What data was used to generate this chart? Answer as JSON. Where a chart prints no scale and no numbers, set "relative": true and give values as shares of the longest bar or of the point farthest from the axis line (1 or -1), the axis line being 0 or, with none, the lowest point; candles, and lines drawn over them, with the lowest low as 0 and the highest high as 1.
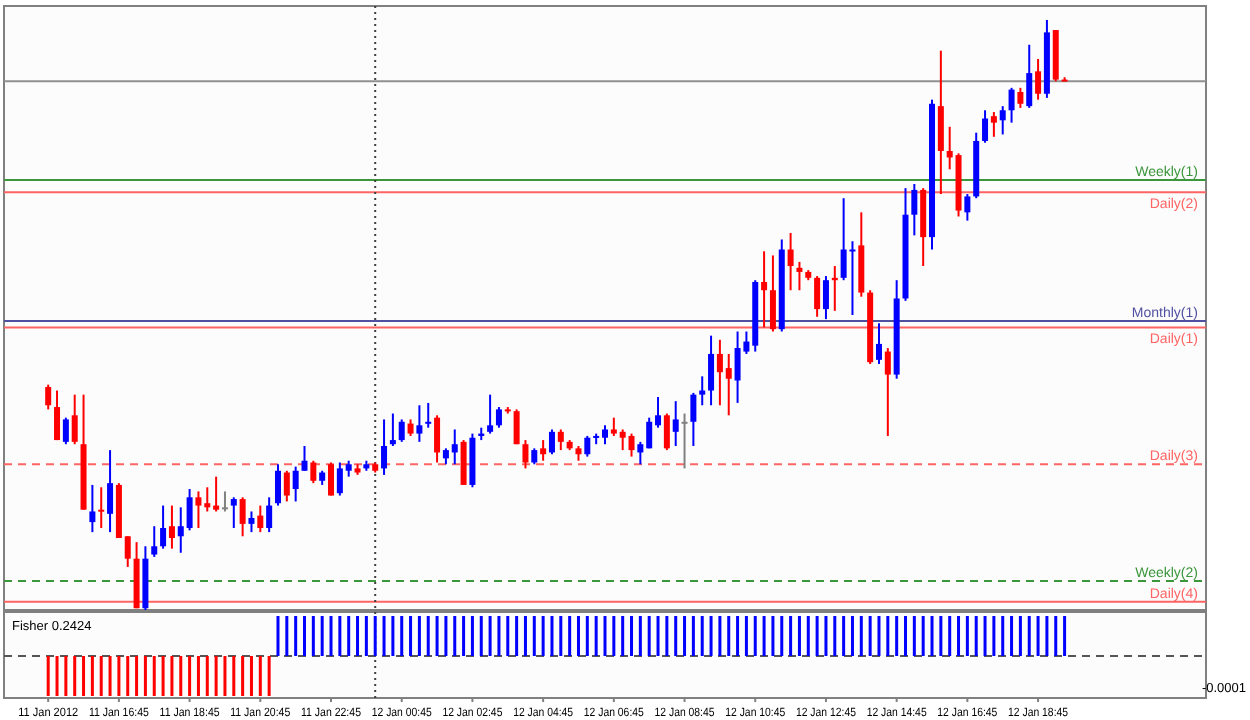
{
  "chart_data": [
    {
      "type": "candlestick",
      "relative": true,
      "tick_labels": false,
      "xlim": [
        "2012-01-11T13:30",
        "2012-01-12T23:30"
      ],
      "x": [
        "2012-01-11T14:45",
        "2012-01-11T15:00",
        "2012-01-11T15:15",
        "2012-01-11T15:30",
        "2012-01-11T15:45",
        "2012-01-11T16:00",
        "2012-01-11T16:15",
        "2012-01-11T16:30",
        "2012-01-11T16:45",
        "2012-01-11T17:00",
        "2012-01-11T17:15",
        "2012-01-11T17:30",
        "2012-01-11T17:45",
        "2012-01-11T18:00",
        "2012-01-11T18:15",
        "2012-01-11T18:30",
        "2012-01-11T18:45",
        "2012-01-11T19:00",
        "2012-01-11T19:15",
        "2012-01-11T19:30",
        "2012-01-11T19:45",
        "2012-01-11T20:00",
        "2012-01-11T20:15",
        "2012-01-11T20:30",
        "2012-01-11T20:45",
        "2012-01-11T21:00",
        "2012-01-11T21:15",
        "2012-01-11T21:30",
        "2012-01-11T21:45",
        "2012-01-11T22:00",
        "2012-01-11T22:15",
        "2012-01-11T22:30",
        "2012-01-11T22:45",
        "2012-01-11T23:00",
        "2012-01-11T23:15",
        "2012-01-11T23:30",
        "2012-01-11T23:45",
        "2012-01-12T00:00",
        "2012-01-12T00:15",
        "2012-01-12T00:30",
        "2012-01-12T00:45",
        "2012-01-12T01:00",
        "2012-01-12T01:15",
        "2012-01-12T01:30",
        "2012-01-12T01:45",
        "2012-01-12T02:00",
        "2012-01-12T02:15",
        "2012-01-12T02:30",
        "2012-01-12T02:45",
        "2012-01-12T03:00",
        "2012-01-12T03:15",
        "2012-01-12T03:30",
        "2012-01-12T03:45",
        "2012-01-12T04:00",
        "2012-01-12T04:15",
        "2012-01-12T04:30",
        "2012-01-12T04:45",
        "2012-01-12T05:00",
        "2012-01-12T05:15",
        "2012-01-12T05:30",
        "2012-01-12T05:45",
        "2012-01-12T06:00",
        "2012-01-12T06:15",
        "2012-01-12T06:30",
        "2012-01-12T06:45",
        "2012-01-12T07:00",
        "2012-01-12T07:15",
        "2012-01-12T07:30",
        "2012-01-12T07:45",
        "2012-01-12T08:00",
        "2012-01-12T08:15",
        "2012-01-12T08:30",
        "2012-01-12T08:45",
        "2012-01-12T09:00",
        "2012-01-12T09:15",
        "2012-01-12T09:30",
        "2012-01-12T09:45",
        "2012-01-12T10:00",
        "2012-01-12T10:15",
        "2012-01-12T10:30",
        "2012-01-12T10:45",
        "2012-01-12T11:00",
        "2012-01-12T11:15",
        "2012-01-12T11:30",
        "2012-01-12T11:45",
        "2012-01-12T12:00",
        "2012-01-12T12:15",
        "2012-01-12T12:30",
        "2012-01-12T12:45",
        "2012-01-12T13:00",
        "2012-01-12T13:15",
        "2012-01-12T13:30",
        "2012-01-12T13:45",
        "2012-01-12T14:00",
        "2012-01-12T14:15",
        "2012-01-12T14:30",
        "2012-01-12T14:45",
        "2012-01-12T15:00",
        "2012-01-12T15:15",
        "2012-01-12T15:30",
        "2012-01-12T15:45",
        "2012-01-12T16:00",
        "2012-01-12T16:15",
        "2012-01-12T16:30",
        "2012-01-12T16:45",
        "2012-01-12T17:00",
        "2012-01-12T17:15",
        "2012-01-12T17:30",
        "2012-01-12T17:45",
        "2012-01-12T18:00",
        "2012-01-12T18:15",
        "2012-01-12T18:30",
        "2012-01-12T18:45",
        "2012-01-12T19:00",
        "2012-01-12T19:15",
        "2012-01-12T19:30"
      ],
      "ohlc": [
        [
          0.378,
          0.382,
          0.34,
          0.347
        ],
        [
          0.344,
          0.372,
          0.288,
          0.288
        ],
        [
          0.285,
          0.326,
          0.281,
          0.323
        ],
        [
          0.33,
          0.365,
          0.281,
          0.285
        ],
        [
          0.281,
          0.365,
          0.17,
          0.17
        ],
        [
          0.149,
          0.212,
          0.132,
          0.167
        ],
        [
          0.17,
          0.208,
          0.139,
          0.167
        ],
        [
          0.163,
          0.271,
          0.132,
          0.215
        ],
        [
          0.212,
          0.215,
          0.122,
          0.122
        ],
        [
          0.125,
          0.125,
          0.073,
          0.087
        ],
        [
          0.087,
          0.115,
          0.003,
          0.003
        ],
        [
          0.003,
          0.108,
          0,
          0.087
        ],
        [
          0.094,
          0.142,
          0.09,
          0.108
        ],
        [
          0.108,
          0.177,
          0.104,
          0.139
        ],
        [
          0.142,
          0.177,
          0.104,
          0.122
        ],
        [
          0.125,
          0.174,
          0.097,
          0.142
        ],
        [
          0.139,
          0.205,
          0.135,
          0.191
        ],
        [
          0.191,
          0.201,
          0.139,
          0.177
        ],
        [
          0.181,
          0.208,
          0.167,
          0.174
        ],
        [
          0.177,
          0.226,
          0.167,
          0.17
        ],
        [
          0.174,
          0.201,
          0.167,
          0.174
        ],
        [
          0.177,
          0.191,
          0.139,
          0.188
        ],
        [
          0.188,
          0.191,
          0.125,
          0.146
        ],
        [
          0.146,
          0.167,
          0.132,
          0.156
        ],
        [
          0.16,
          0.177,
          0.132,
          0.139
        ],
        [
          0.139,
          0.191,
          0.132,
          0.177
        ],
        [
          0.181,
          0.247,
          0.177,
          0.236
        ],
        [
          0.233,
          0.236,
          0.184,
          0.194
        ],
        [
          0.205,
          0.243,
          0.184,
          0.236
        ],
        [
          0.236,
          0.278,
          0.236,
          0.253
        ],
        [
          0.25,
          0.253,
          0.215,
          0.219
        ],
        [
          0.219,
          0.236,
          0.212,
          0.233
        ],
        [
          0.247,
          0.25,
          0.194,
          0.194
        ],
        [
          0.198,
          0.25,
          0.194,
          0.24
        ],
        [
          0.236,
          0.253,
          0.226,
          0.247
        ],
        [
          0.24,
          0.247,
          0.229,
          0.233
        ],
        [
          0.24,
          0.253,
          0.236,
          0.247
        ],
        [
          0.247,
          0.25,
          0.233,
          0.236
        ],
        [
          0.24,
          0.323,
          0.229,
          0.278
        ],
        [
          0.281,
          0.333,
          0.278,
          0.288
        ],
        [
          0.288,
          0.323,
          0.285,
          0.319
        ],
        [
          0.316,
          0.323,
          0.295,
          0.299
        ],
        [
          0.299,
          0.347,
          0.285,
          0.313
        ],
        [
          0.316,
          0.351,
          0.309,
          0.319
        ],
        [
          0.326,
          0.33,
          0.25,
          0.267
        ],
        [
          0.257,
          0.274,
          0.247,
          0.271
        ],
        [
          0.267,
          0.306,
          0.247,
          0.281
        ],
        [
          0.285,
          0.288,
          0.212,
          0.212
        ],
        [
          0.212,
          0.299,
          0.208,
          0.292
        ],
        [
          0.295,
          0.309,
          0.288,
          0.299
        ],
        [
          0.302,
          0.365,
          0.299,
          0.313
        ],
        [
          0.313,
          0.344,
          0.309,
          0.34
        ],
        [
          0.34,
          0.344,
          0.333,
          0.337
        ],
        [
          0.337,
          0.34,
          0.281,
          0.281
        ],
        [
          0.281,
          0.288,
          0.24,
          0.25
        ],
        [
          0.25,
          0.274,
          0.247,
          0.271
        ],
        [
          0.274,
          0.288,
          0.253,
          0.264
        ],
        [
          0.267,
          0.306,
          0.264,
          0.302
        ],
        [
          0.302,
          0.306,
          0.271,
          0.285
        ],
        [
          0.285,
          0.288,
          0.271,
          0.274
        ],
        [
          0.274,
          0.278,
          0.253,
          0.264
        ],
        [
          0.264,
          0.295,
          0.26,
          0.292
        ],
        [
          0.292,
          0.299,
          0.281,
          0.295
        ],
        [
          0.292,
          0.313,
          0.281,
          0.306
        ],
        [
          0.306,
          0.326,
          0.295,
          0.299
        ],
        [
          0.302,
          0.306,
          0.271,
          0.292
        ],
        [
          0.295,
          0.299,
          0.26,
          0.271
        ],
        [
          0.267,
          0.285,
          0.247,
          0.281
        ],
        [
          0.274,
          0.326,
          0.274,
          0.319
        ],
        [
          0.313,
          0.361,
          0.309,
          0.33
        ],
        [
          0.33,
          0.333,
          0.271,
          0.274
        ],
        [
          0.302,
          0.354,
          0.278,
          0.323
        ],
        [
          0.319,
          0.333,
          0.24,
          0.319
        ],
        [
          0.319,
          0.368,
          0.278,
          0.365
        ],
        [
          0.365,
          0.396,
          0.347,
          0.372
        ],
        [
          0.372,
          0.465,
          0.347,
          0.434
        ],
        [
          0.434,
          0.458,
          0.347,
          0.403
        ],
        [
          0.41,
          0.434,
          0.33,
          0.392
        ],
        [
          0.389,
          0.472,
          0.351,
          0.444
        ],
        [
          0.438,
          0.472,
          0.434,
          0.455
        ],
        [
          0.448,
          0.559,
          0.438,
          0.556
        ],
        [
          0.556,
          0.608,
          0.479,
          0.542
        ],
        [
          0.542,
          0.601,
          0.472,
          0.476
        ],
        [
          0.476,
          0.628,
          0.472,
          0.611
        ],
        [
          0.611,
          0.639,
          0.542,
          0.583
        ],
        [
          0.58,
          0.59,
          0.542,
          0.573
        ],
        [
          0.573,
          0.576,
          0.559,
          0.563
        ],
        [
          0.563,
          0.566,
          0.497,
          0.51
        ],
        [
          0.51,
          0.566,
          0.493,
          0.559
        ],
        [
          0.563,
          0.583,
          0.507,
          0.559
        ],
        [
          0.563,
          0.698,
          0.559,
          0.611
        ],
        [
          0.608,
          0.625,
          0.5,
          0.611
        ],
        [
          0.618,
          0.674,
          0.531,
          0.538
        ],
        [
          0.538,
          0.542,
          0.417,
          0.42
        ],
        [
          0.424,
          0.486,
          0.417,
          0.451
        ],
        [
          0.438,
          0.444,
          0.295,
          0.399
        ],
        [
          0.399,
          0.559,
          0.392,
          0.528
        ],
        [
          0.528,
          0.715,
          0.524,
          0.67
        ],
        [
          0.67,
          0.722,
          0.635,
          0.712
        ],
        [
          0.712,
          0.715,
          0.583,
          0.632
        ],
        [
          0.632,
          0.865,
          0.611,
          0.858
        ],
        [
          0.854,
          0.948,
          0.705,
          0.778
        ],
        [
          0.778,
          0.819,
          0.747,
          0.767
        ],
        [
          0.771,
          0.774,
          0.667,
          0.677
        ],
        [
          0.674,
          0.705,
          0.66,
          0.701
        ],
        [
          0.701,
          0.809,
          0.698,
          0.795
        ],
        [
          0.795,
          0.847,
          0.792,
          0.833
        ],
        [
          0.837,
          0.844,
          0.802,
          0.826
        ],
        [
          0.83,
          0.854,
          0.806,
          0.847
        ],
        [
          0.847,
          0.885,
          0.826,
          0.882
        ],
        [
          0.878,
          0.885,
          0.851,
          0.858
        ],
        [
          0.854,
          0.958,
          0.851,
          0.91
        ],
        [
          0.913,
          0.934,
          0.865,
          0.875
        ],
        [
          0.875,
          1,
          0.868,
          0.979
        ],
        [
          0.983,
          0.983,
          0.896,
          0.899
        ],
        [
          0.899,
          0.903,
          0.896,
          0.896
        ]
      ],
      "colors": [
        "#ff0000",
        "#ff0000",
        "#0000ff",
        "#ff0000",
        "#ff0000",
        "#0000ff",
        "#ff0000",
        "#0000ff",
        "#ff0000",
        "#ff0000",
        "#ff0000",
        "#0000ff",
        "#0000ff",
        "#0000ff",
        "#ff0000",
        "#0000ff",
        "#0000ff",
        "#ff0000",
        "#ff0000",
        "#ff0000",
        "#808080",
        "#0000ff",
        "#ff0000",
        "#0000ff",
        "#ff0000",
        "#0000ff",
        "#0000ff",
        "#ff0000",
        "#0000ff",
        "#0000ff",
        "#ff0000",
        "#0000ff",
        "#ff0000",
        "#0000ff",
        "#0000ff",
        "#ff0000",
        "#0000ff",
        "#ff0000",
        "#0000ff",
        "#0000ff",
        "#0000ff",
        "#ff0000",
        "#0000ff",
        "#0000ff",
        "#ff0000",
        "#0000ff",
        "#0000ff",
        "#ff0000",
        "#0000ff",
        "#0000ff",
        "#0000ff",
        "#0000ff",
        "#ff0000",
        "#ff0000",
        "#ff0000",
        "#0000ff",
        "#ff0000",
        "#0000ff",
        "#ff0000",
        "#ff0000",
        "#ff0000",
        "#0000ff",
        "#0000ff",
        "#0000ff",
        "#ff0000",
        "#ff0000",
        "#ff0000",
        "#0000ff",
        "#0000ff",
        "#0000ff",
        "#ff0000",
        "#0000ff",
        "#808080",
        "#0000ff",
        "#0000ff",
        "#0000ff",
        "#ff0000",
        "#ff0000",
        "#0000ff",
        "#0000ff",
        "#0000ff",
        "#ff0000",
        "#ff0000",
        "#0000ff",
        "#ff0000",
        "#ff0000",
        "#ff0000",
        "#ff0000",
        "#0000ff",
        "#ff0000",
        "#0000ff",
        "#0000ff",
        "#ff0000",
        "#ff0000",
        "#0000ff",
        "#ff0000",
        "#0000ff",
        "#0000ff",
        "#0000ff",
        "#ff0000",
        "#0000ff",
        "#ff0000",
        "#ff0000",
        "#ff0000",
        "#0000ff",
        "#0000ff",
        "#0000ff",
        "#ff0000",
        "#0000ff",
        "#0000ff",
        "#ff0000",
        "#0000ff",
        "#ff0000",
        "#0000ff",
        "#ff0000",
        "#ff0000"
      ],
      "ref_lines": [
        {
          "axis": "y",
          "value": 0.896,
          "label": null,
          "color": "#909090",
          "line_style": "solid"
        },
        {
          "axis": "y",
          "value": 0.729,
          "label": "Weekly(1)",
          "color": "#3c963c",
          "line_style": "solid"
        },
        {
          "axis": "y",
          "value": 0.708,
          "label": "Daily(2)",
          "color": "#ff6464",
          "line_style": "solid"
        },
        {
          "axis": "y",
          "value": 0.49,
          "label": "Monthly(1)",
          "color": "#5050a0",
          "line_style": "solid"
        },
        {
          "axis": "y",
          "value": 0.479,
          "label": "Daily(1)",
          "color": "#ff6464",
          "line_style": "solid"
        },
        {
          "axis": "y",
          "value": 0.247,
          "label": "Daily(3)",
          "color": "#ff6464",
          "line_style": "dashed"
        },
        {
          "axis": "y",
          "value": 0.049,
          "label": "Weekly(2)",
          "color": "#3c963c",
          "line_style": "dashed"
        },
        {
          "axis": "y",
          "value": 0.014,
          "label": "Daily(4)",
          "color": "#ff6464",
          "line_style": "solid"
        },
        {
          "axis": "x",
          "value": "2012-01-12T00:00",
          "label": null,
          "color": "#404040",
          "line_style": "dotted"
        }
      ]
    },
    {
      "type": "bar",
      "relative": true,
      "title": "Fisher 0.2424",
      "tick_labels": "x",
      "annotations": [
        "-0.0001"
      ],
      "xlim": [
        "2012-01-11T13:30",
        "2012-01-12T23:30"
      ],
      "xticks": [
        {
          "value": "2012-01-11T14:45",
          "label": "11 Jan 2012"
        },
        {
          "value": "2012-01-11T16:45",
          "label": "11 Jan 16:45"
        },
        {
          "value": "2012-01-11T18:45",
          "label": "11 Jan 18:45"
        },
        {
          "value": "2012-01-11T20:45",
          "label": "11 Jan 20:45"
        },
        {
          "value": "2012-01-11T22:45",
          "label": "11 Jan 22:45"
        },
        {
          "value": "2012-01-12T00:45",
          "label": "12 Jan 00:45"
        },
        {
          "value": "2012-01-12T02:45",
          "label": "12 Jan 02:45"
        },
        {
          "value": "2012-01-12T04:45",
          "label": "12 Jan 04:45"
        },
        {
          "value": "2012-01-12T06:45",
          "label": "12 Jan 06:45"
        },
        {
          "value": "2012-01-12T08:45",
          "label": "12 Jan 08:45"
        },
        {
          "value": "2012-01-12T10:45",
          "label": "12 Jan 10:45"
        },
        {
          "value": "2012-01-12T12:45",
          "label": "12 Jan 12:45"
        },
        {
          "value": "2012-01-12T14:45",
          "label": "12 Jan 14:45"
        },
        {
          "value": "2012-01-12T16:45",
          "label": "12 Jan 16:45"
        },
        {
          "value": "2012-01-12T18:45",
          "label": "12 Jan 18:45"
        }
      ],
      "x": [
        "2012-01-11T14:45",
        "2012-01-11T15:00",
        "2012-01-11T15:15",
        "2012-01-11T15:30",
        "2012-01-11T15:45",
        "2012-01-11T16:00",
        "2012-01-11T16:15",
        "2012-01-11T16:30",
        "2012-01-11T16:45",
        "2012-01-11T17:00",
        "2012-01-11T17:15",
        "2012-01-11T17:30",
        "2012-01-11T17:45",
        "2012-01-11T18:00",
        "2012-01-11T18:15",
        "2012-01-11T18:30",
        "2012-01-11T18:45",
        "2012-01-11T19:00",
        "2012-01-11T19:15",
        "2012-01-11T19:30",
        "2012-01-11T19:45",
        "2012-01-11T20:00",
        "2012-01-11T20:15",
        "2012-01-11T20:30",
        "2012-01-11T20:45",
        "2012-01-11T21:00",
        "2012-01-11T21:15",
        "2012-01-11T21:30",
        "2012-01-11T21:45",
        "2012-01-11T22:00",
        "2012-01-11T22:15",
        "2012-01-11T22:30",
        "2012-01-11T22:45",
        "2012-01-11T23:00",
        "2012-01-11T23:15",
        "2012-01-11T23:30",
        "2012-01-11T23:45",
        "2012-01-12T00:00",
        "2012-01-12T00:15",
        "2012-01-12T00:30",
        "2012-01-12T00:45",
        "2012-01-12T01:00",
        "2012-01-12T01:15",
        "2012-01-12T01:30",
        "2012-01-12T01:45",
        "2012-01-12T02:00",
        "2012-01-12T02:15",
        "2012-01-12T02:30",
        "2012-01-12T02:45",
        "2012-01-12T03:00",
        "2012-01-12T03:15",
        "2012-01-12T03:30",
        "2012-01-12T03:45",
        "2012-01-12T04:00",
        "2012-01-12T04:15",
        "2012-01-12T04:30",
        "2012-01-12T04:45",
        "2012-01-12T05:00",
        "2012-01-12T05:15",
        "2012-01-12T05:30",
        "2012-01-12T05:45",
        "2012-01-12T06:00",
        "2012-01-12T06:15",
        "2012-01-12T06:30",
        "2012-01-12T06:45",
        "2012-01-12T07:00",
        "2012-01-12T07:15",
        "2012-01-12T07:30",
        "2012-01-12T07:45",
        "2012-01-12T08:00",
        "2012-01-12T08:15",
        "2012-01-12T08:30",
        "2012-01-12T08:45",
        "2012-01-12T09:00",
        "2012-01-12T09:15",
        "2012-01-12T09:30",
        "2012-01-12T09:45",
        "2012-01-12T10:00",
        "2012-01-12T10:15",
        "2012-01-12T10:30",
        "2012-01-12T10:45",
        "2012-01-12T11:00",
        "2012-01-12T11:15",
        "2012-01-12T11:30",
        "2012-01-12T11:45",
        "2012-01-12T12:00",
        "2012-01-12T12:15",
        "2012-01-12T12:30",
        "2012-01-12T12:45",
        "2012-01-12T13:00",
        "2012-01-12T13:15",
        "2012-01-12T13:30",
        "2012-01-12T13:45",
        "2012-01-12T14:00",
        "2012-01-12T14:15",
        "2012-01-12T14:30",
        "2012-01-12T14:45",
        "2012-01-12T15:00",
        "2012-01-12T15:15",
        "2012-01-12T15:30",
        "2012-01-12T15:45",
        "2012-01-12T16:00",
        "2012-01-12T16:15",
        "2012-01-12T16:30",
        "2012-01-12T16:45",
        "2012-01-12T17:00",
        "2012-01-12T17:15",
        "2012-01-12T17:30",
        "2012-01-12T17:45",
        "2012-01-12T18:00",
        "2012-01-12T18:15",
        "2012-01-12T18:30",
        "2012-01-12T18:45",
        "2012-01-12T19:00",
        "2012-01-12T19:15",
        "2012-01-12T19:30"
      ],
      "values": [
        -1,
        -1,
        -1,
        -1,
        -1,
        -1,
        -1,
        -1,
        -1,
        -1,
        -1,
        -1,
        -1,
        -1,
        -1,
        -1,
        -1,
        -1,
        -1,
        -1,
        -1,
        -1,
        -1,
        -1,
        -1,
        -1,
        1,
        1,
        1,
        1,
        1,
        1,
        1,
        1,
        1,
        1,
        1,
        1,
        1,
        1,
        1,
        1,
        1,
        1,
        1,
        1,
        1,
        1,
        1,
        1,
        1,
        1,
        1,
        1,
        1,
        1,
        1,
        1,
        1,
        1,
        1,
        1,
        1,
        1,
        1,
        1,
        1,
        1,
        1,
        1,
        1,
        1,
        1,
        1,
        1,
        1,
        1,
        1,
        1,
        1,
        1,
        1,
        1,
        1,
        1,
        1,
        1,
        1,
        1,
        1,
        1,
        1,
        1,
        1,
        1,
        1,
        1,
        1,
        1,
        1,
        1,
        1,
        1,
        1,
        1,
        1,
        1,
        1,
        1,
        1,
        1,
        1,
        1,
        1,
        1,
        1
      ],
      "colors": [
        "#ff0000",
        "#ff0000",
        "#ff0000",
        "#ff0000",
        "#ff0000",
        "#ff0000",
        "#ff0000",
        "#ff0000",
        "#ff0000",
        "#ff0000",
        "#ff0000",
        "#ff0000",
        "#ff0000",
        "#ff0000",
        "#ff0000",
        "#ff0000",
        "#ff0000",
        "#ff0000",
        "#ff0000",
        "#ff0000",
        "#ff0000",
        "#ff0000",
        "#ff0000",
        "#ff0000",
        "#ff0000",
        "#ff0000",
        "#0000ff",
        "#0000ff",
        "#0000ff",
        "#0000ff",
        "#0000ff",
        "#0000ff",
        "#0000ff",
        "#0000ff",
        "#0000ff",
        "#0000ff",
        "#0000ff",
        "#0000ff",
        "#0000ff",
        "#0000ff",
        "#0000ff",
        "#0000ff",
        "#0000ff",
        "#0000ff",
        "#0000ff",
        "#0000ff",
        "#0000ff",
        "#0000ff",
        "#0000ff",
        "#0000ff",
        "#0000ff",
        "#0000ff",
        "#0000ff",
        "#0000ff",
        "#0000ff",
        "#0000ff",
        "#0000ff",
        "#0000ff",
        "#0000ff",
        "#0000ff",
        "#0000ff",
        "#0000ff",
        "#0000ff",
        "#0000ff",
        "#0000ff",
        "#0000ff",
        "#0000ff",
        "#0000ff",
        "#0000ff",
        "#0000ff",
        "#0000ff",
        "#0000ff",
        "#0000ff",
        "#0000ff",
        "#0000ff",
        "#0000ff",
        "#0000ff",
        "#0000ff",
        "#0000ff",
        "#0000ff",
        "#0000ff",
        "#0000ff",
        "#0000ff",
        "#0000ff",
        "#0000ff",
        "#0000ff",
        "#0000ff",
        "#0000ff",
        "#0000ff",
        "#0000ff",
        "#0000ff",
        "#0000ff",
        "#0000ff",
        "#0000ff",
        "#0000ff",
        "#0000ff",
        "#0000ff",
        "#0000ff",
        "#0000ff",
        "#0000ff",
        "#0000ff",
        "#0000ff",
        "#0000ff",
        "#0000ff",
        "#0000ff",
        "#0000ff",
        "#0000ff",
        "#0000ff",
        "#0000ff",
        "#0000ff",
        "#0000ff",
        "#0000ff",
        "#0000ff",
        "#0000ff",
        "#0000ff",
        "#0000ff"
      ],
      "ref_lines": [
        {
          "axis": "y",
          "value": 0,
          "label": null,
          "color": "#555555",
          "line_style": "dashed"
        },
        {
          "axis": "x",
          "value": "2012-01-12T00:00",
          "label": null,
          "color": "#404040",
          "line_style": "dotted"
        }
      ]
    }
  ]
}
